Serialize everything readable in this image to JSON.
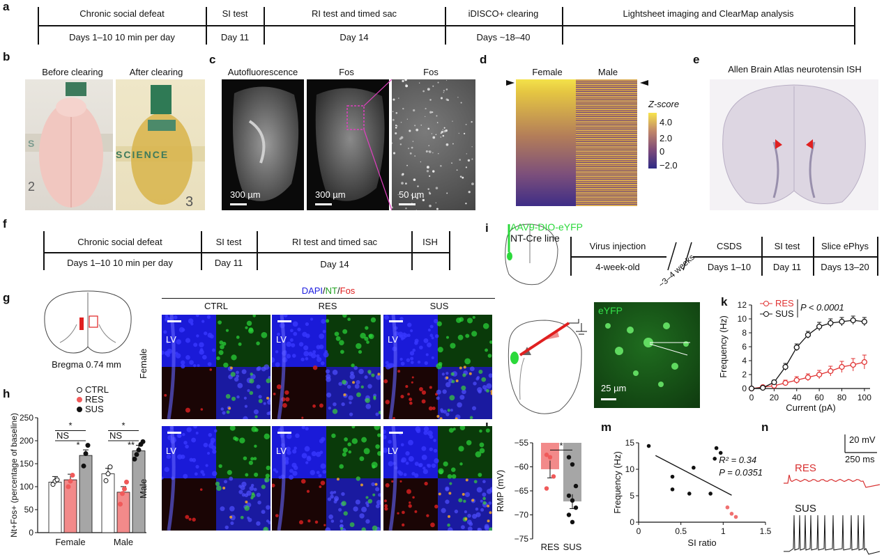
{
  "panels": {
    "a": "a",
    "b": "b",
    "c": "c",
    "d": "d",
    "e": "e",
    "f": "f",
    "g": "g",
    "h": "h",
    "i": "i",
    "j": "j",
    "k": "k",
    "l": "l",
    "m": "m",
    "n": "n"
  },
  "timeline_a": {
    "stages": [
      {
        "top": "Chronic social defeat",
        "bottom": "Days 1–10 10 min per day"
      },
      {
        "top": "SI test",
        "bottom": "Day 11"
      },
      {
        "top": "RI test and timed sac",
        "bottom": "Day 14"
      },
      {
        "top": "iDISCO+ clearing",
        "bottom": "Days ~18–40"
      },
      {
        "top": "Lightsheet imaging and ClearMap analysis",
        "bottom": ""
      }
    ]
  },
  "panel_b": {
    "before": "Before clearing",
    "after": "After clearing",
    "ruler_text": "SCIENCE",
    "ruler_num": "3"
  },
  "panel_c": {
    "titles": [
      "Autofluorescence",
      "Fos",
      "Fos"
    ],
    "scales": [
      "300 µm",
      "300 µm",
      "50 µm"
    ]
  },
  "panel_d": {
    "female": "Female",
    "male": "Male",
    "zlabel": "Z-score",
    "ticks": [
      "4.0",
      "2.0",
      "0",
      "−2.0"
    ]
  },
  "panel_e": {
    "title": "Allen Brain Atlas neurotensin ISH"
  },
  "timeline_f": {
    "stages": [
      {
        "top": "Chronic social defeat",
        "bottom": "Days 1–10 10 min per day"
      },
      {
        "top": "SI test",
        "bottom": "Day 11"
      },
      {
        "top": "RI test and timed sac",
        "bottom": "Day 14"
      },
      {
        "top": "ISH",
        "bottom": ""
      }
    ]
  },
  "panel_i": {
    "virus": "AAV9-DIO-eYFP",
    "line": "NT-Cre line",
    "stages": [
      {
        "top": "Virus injection",
        "bottom": "4-week-old"
      },
      {
        "top": "CSDS",
        "bottom": "Days 1–10"
      },
      {
        "top": "SI test",
        "bottom": "Day 11"
      },
      {
        "top": "Slice ePhys",
        "bottom": "Days 13–20"
      }
    ],
    "gap": "~3–4 weeks"
  },
  "panel_g": {
    "caption": "Bregma 0.74 mm"
  },
  "micrographs": {
    "header_dapi": "DAPI",
    "header_sep": "/",
    "header_nt": "NT",
    "header_sep2": "/",
    "header_fos": "Fos",
    "cols": [
      "CTRL",
      "RES",
      "SUS"
    ],
    "rows": [
      "Female",
      "Male"
    ],
    "lv": "LV"
  },
  "panel_j": {
    "label": "eYFP",
    "scale": "25 µm"
  },
  "colors": {
    "ctrl": "#ffffff",
    "res": "#f05a5a",
    "sus": "#111111",
    "grey": "#a6a6a6",
    "pink": "#f28a8a",
    "green": "#2bd93b"
  },
  "chart_data": [
    {
      "panel": "h",
      "type": "bar",
      "ylabel": "Nt+Fos+ (percentage of baseline)",
      "ylim": [
        0,
        250
      ],
      "yticks": [
        0,
        50,
        100,
        150,
        200,
        250
      ],
      "groups": [
        "Female",
        "Male"
      ],
      "legend": [
        "CTRL",
        "RES",
        "SUS"
      ],
      "series": [
        {
          "name": "CTRL",
          "values": [
            110,
            128
          ]
        },
        {
          "name": "RES",
          "values": [
            115,
            88
          ]
        },
        {
          "name": "SUS",
          "values": [
            168,
            178
          ]
        }
      ],
      "points": {
        "Female": {
          "CTRL": [
            105,
            112,
            115
          ],
          "RES": [
            100,
            112,
            125
          ],
          "SUS": [
            145,
            172,
            190
          ]
        },
        "Male": {
          "CTRL": [
            113,
            128,
            143
          ],
          "RES": [
            62,
            85,
            95,
            110
          ],
          "SUS": [
            160,
            170,
            180,
            192,
            198
          ]
        }
      },
      "stats": {
        "Female": [
          "NS",
          "*",
          "*"
        ],
        "Male": [
          "NS",
          "**",
          "*"
        ]
      }
    },
    {
      "panel": "k",
      "type": "line",
      "xlabel": "Current (pA)",
      "ylabel": "Frequency (Hz)",
      "xlim": [
        0,
        105
      ],
      "ylim": [
        0,
        12
      ],
      "xticks": [
        0,
        20,
        40,
        60,
        80,
        100
      ],
      "yticks": [
        0,
        2,
        4,
        6,
        8,
        10,
        12
      ],
      "x": [
        0,
        10,
        20,
        30,
        40,
        50,
        60,
        70,
        80,
        90,
        100
      ],
      "series": [
        {
          "name": "RES",
          "values": [
            0,
            0.2,
            0.4,
            0.8,
            1.2,
            1.6,
            2.0,
            2.5,
            3.1,
            3.4,
            3.8
          ],
          "err": [
            0,
            0.2,
            0.3,
            0.4,
            0.5,
            0.5,
            0.6,
            0.7,
            0.8,
            0.9,
            1.0
          ]
        },
        {
          "name": "SUS",
          "values": [
            0,
            0.1,
            0.9,
            3.1,
            5.9,
            7.7,
            8.9,
            9.4,
            9.6,
            9.8,
            9.6
          ],
          "err": [
            0,
            0.1,
            0.3,
            0.5,
            0.5,
            0.5,
            0.6,
            0.6,
            0.6,
            0.6,
            0.6
          ]
        }
      ],
      "annotation": "P < 0.0001"
    },
    {
      "panel": "l",
      "type": "bar",
      "ylabel": "RMP (mV)",
      "ylim": [
        -75,
        -55
      ],
      "yticks": [
        -55,
        -60,
        -65,
        -70,
        -75
      ],
      "categories": [
        "RES",
        "SUS"
      ],
      "values": [
        -60.5,
        -67.2
      ],
      "err": [
        1.8,
        1.5
      ],
      "points": {
        "RES": [
          -57.5,
          -58,
          -62,
          -64.5
        ],
        "SUS": [
          -58,
          -59.5,
          -64,
          -66,
          -67,
          -68.5,
          -70,
          -71.5
        ]
      },
      "stat": "*"
    },
    {
      "panel": "m",
      "type": "scatter",
      "xlabel": "SI ratio",
      "ylabel": "Frequency (Hz)",
      "xlim": [
        0,
        1.5
      ],
      "ylim": [
        0,
        15
      ],
      "xticks": [
        0,
        0.5,
        1.0,
        1.5
      ],
      "yticks": [
        0,
        5,
        10,
        15
      ],
      "points_sus": [
        [
          0.12,
          14.4
        ],
        [
          0.4,
          8.6
        ],
        [
          0.4,
          6.2
        ],
        [
          0.6,
          5.4
        ],
        [
          0.65,
          10.3
        ],
        [
          0.85,
          5.4
        ],
        [
          0.9,
          12
        ],
        [
          0.92,
          14
        ],
        [
          0.97,
          13.1
        ]
      ],
      "points_res": [
        [
          1.05,
          2.8
        ],
        [
          1.1,
          1.6
        ],
        [
          1.15,
          1.0
        ]
      ],
      "fit": [
        [
          0.2,
          12.6
        ],
        [
          1.1,
          5.1
        ]
      ],
      "r2": "R² = 0.34",
      "p": "P = 0.0351"
    }
  ],
  "panel_n": {
    "res": "RES",
    "sus": "SUS",
    "scale_v": "20 mV",
    "scale_t": "250 ms"
  }
}
